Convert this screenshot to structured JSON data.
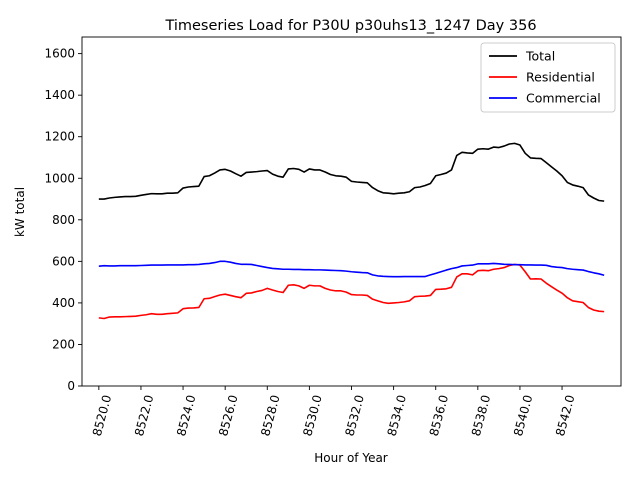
{
  "chart_data": {
    "type": "line",
    "title": "Timeseries Load for P30U p30uhs13_1247  Day 356",
    "xlabel": "Hour of Year",
    "ylabel": "kW total",
    "xlim": [
      8519.2,
      8544.8
    ],
    "ylim": [
      0,
      1680
    ],
    "grid": false,
    "legend_position": "top-right",
    "x_ticks": [
      8520,
      8522,
      8524,
      8526,
      8528,
      8530,
      8532,
      8534,
      8536,
      8538,
      8540,
      8542
    ],
    "x_tick_labels": [
      "8520.0",
      "8522.0",
      "8524.0",
      "8526.0",
      "8528.0",
      "8530.0",
      "8532.0",
      "8534.0",
      "8536.0",
      "8538.0",
      "8540.0",
      "8542.0"
    ],
    "y_ticks": [
      0,
      200,
      400,
      600,
      800,
      1000,
      1200,
      1400,
      1600
    ],
    "y_tick_labels": [
      "0",
      "200",
      "400",
      "600",
      "800",
      "1000",
      "1200",
      "1400",
      "1600"
    ],
    "x_start": 8520,
    "x_step": 0.25,
    "series": [
      {
        "name": "Total",
        "color": "#000000",
        "values": [
          900,
          900,
          905,
          908,
          910,
          912,
          912,
          913,
          918,
          922,
          926,
          925,
          925,
          928,
          928,
          930,
          953,
          958,
          960,
          962,
          1008,
          1012,
          1025,
          1040,
          1043,
          1035,
          1022,
          1010,
          1028,
          1030,
          1032,
          1035,
          1037,
          1020,
          1010,
          1005,
          1045,
          1047,
          1043,
          1030,
          1045,
          1040,
          1040,
          1030,
          1018,
          1012,
          1010,
          1005,
          985,
          982,
          980,
          978,
          955,
          940,
          930,
          928,
          925,
          928,
          930,
          935,
          955,
          958,
          965,
          975,
          1012,
          1018,
          1025,
          1040,
          1110,
          1125,
          1122,
          1120,
          1140,
          1142,
          1140,
          1150,
          1148,
          1155,
          1165,
          1168,
          1160,
          1120,
          1098,
          1096,
          1095,
          1075,
          1055,
          1035,
          1012,
          980,
          968,
          962,
          955,
          920,
          905,
          893,
          890
        ]
      },
      {
        "name": "Residential",
        "color": "#ff0000",
        "values": [
          328,
          325,
          332,
          333,
          333,
          334,
          335,
          336,
          340,
          343,
          348,
          345,
          345,
          348,
          350,
          352,
          372,
          375,
          376,
          378,
          420,
          422,
          430,
          438,
          442,
          436,
          430,
          425,
          446,
          448,
          455,
          460,
          470,
          462,
          455,
          450,
          485,
          487,
          482,
          470,
          485,
          482,
          482,
          470,
          462,
          458,
          458,
          452,
          440,
          438,
          438,
          436,
          418,
          410,
          402,
          398,
          400,
          402,
          405,
          410,
          430,
          432,
          433,
          436,
          465,
          466,
          468,
          475,
          525,
          540,
          540,
          535,
          555,
          557,
          555,
          562,
          565,
          570,
          580,
          585,
          582,
          550,
          515,
          516,
          515,
          495,
          478,
          462,
          447,
          425,
          410,
          406,
          402,
          378,
          366,
          360,
          358
        ]
      },
      {
        "name": "Commercial",
        "color": "#0000ff",
        "values": [
          577,
          579,
          578,
          578,
          579,
          579,
          579,
          579,
          580,
          581,
          582,
          582,
          582,
          583,
          583,
          583,
          583,
          584,
          584,
          585,
          588,
          590,
          594,
          600,
          600,
          596,
          590,
          586,
          586,
          585,
          580,
          575,
          570,
          566,
          564,
          562,
          562,
          561,
          561,
          560,
          560,
          559,
          559,
          558,
          557,
          556,
          555,
          553,
          550,
          548,
          546,
          545,
          535,
          530,
          528,
          527,
          526,
          526,
          527,
          527,
          527,
          527,
          527,
          535,
          542,
          550,
          558,
          565,
          570,
          578,
          580,
          582,
          588,
          588,
          588,
          590,
          588,
          586,
          585,
          584,
          584,
          583,
          583,
          582,
          582,
          581,
          575,
          572,
          570,
          565,
          562,
          560,
          558,
          551,
          545,
          540,
          533
        ]
      }
    ]
  }
}
